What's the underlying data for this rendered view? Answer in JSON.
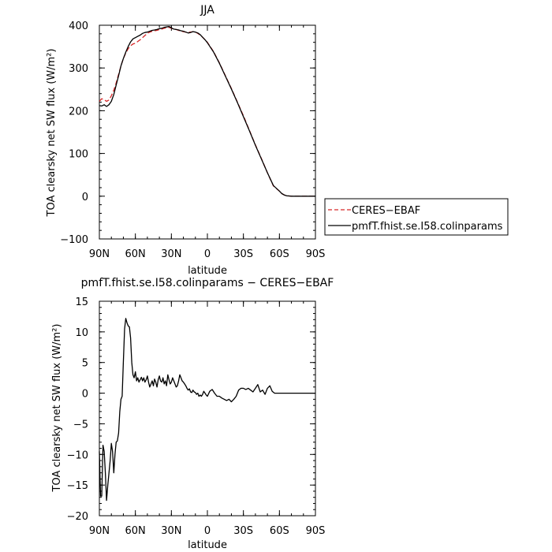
{
  "chart_data": [
    {
      "type": "line",
      "title": "JJA",
      "xlabel": "latitude",
      "ylabel": "TOA clearsky net SW flux (W/m²)",
      "ylim": [
        -100,
        400
      ],
      "xlim": [
        90,
        -90
      ],
      "x_ticks": [
        90,
        60,
        30,
        0,
        -30,
        -60,
        -90
      ],
      "x_tick_labels": [
        "90N",
        "60N",
        "30N",
        "0",
        "30S",
        "60S",
        "90S"
      ],
      "y_ticks": [
        -100,
        0,
        100,
        200,
        300,
        400
      ],
      "y_tick_labels": [
        "−100",
        "0",
        "100",
        "200",
        "300",
        "400"
      ],
      "grid": false,
      "legend_position": "right",
      "series": [
        {
          "name": "CERES−EBAF",
          "color": "#d62728",
          "dash": "dashed",
          "x": [
            90,
            88,
            86,
            84,
            82,
            80,
            78,
            76,
            74,
            72,
            70,
            68,
            66,
            64,
            62,
            60,
            58,
            56,
            54,
            52,
            50,
            48,
            46,
            44,
            42,
            40,
            38,
            36,
            34,
            32,
            30,
            28,
            26,
            24,
            22,
            20,
            18,
            16,
            14,
            12,
            10,
            8,
            6,
            4,
            2,
            0,
            -5,
            -10,
            -15,
            -20,
            -25,
            -30,
            -35,
            -40,
            -45,
            -50,
            -55,
            -60,
            -62,
            -64,
            -66,
            -68,
            -70,
            -75,
            -80,
            -85,
            -90
          ],
          "y": [
            222,
            228,
            226,
            222,
            225,
            235,
            248,
            265,
            285,
            305,
            322,
            335,
            345,
            352,
            356,
            358,
            362,
            366,
            371,
            376,
            381,
            384,
            386,
            387,
            388,
            390,
            391,
            393,
            394,
            395,
            393,
            391,
            390,
            388,
            386,
            385,
            384,
            383,
            384,
            385,
            384,
            381,
            377,
            372,
            366,
            360,
            339,
            312,
            282,
            252,
            220,
            188,
            154,
            120,
            88,
            55,
            24,
            12,
            6,
            3,
            1,
            0.5,
            0,
            0,
            0,
            0,
            0
          ]
        },
        {
          "name": "pmfT.fhist.se.I58.colinparams",
          "color": "#000000",
          "dash": "solid",
          "x": [
            90,
            88,
            86,
            84,
            82,
            80,
            78,
            76,
            74,
            72,
            70,
            68,
            66,
            64,
            62,
            60,
            58,
            56,
            54,
            52,
            50,
            48,
            46,
            44,
            42,
            40,
            38,
            36,
            34,
            32,
            30,
            28,
            26,
            24,
            22,
            20,
            18,
            16,
            14,
            12,
            10,
            8,
            6,
            4,
            2,
            0,
            -5,
            -10,
            -15,
            -20,
            -25,
            -30,
            -35,
            -40,
            -45,
            -50,
            -55,
            -60,
            -62,
            -64,
            -66,
            -68,
            -70,
            -75,
            -80,
            -85,
            -90
          ],
          "y": [
            212,
            211,
            214,
            210,
            214,
            222,
            238,
            260,
            282,
            305,
            322,
            337,
            350,
            361,
            368,
            371,
            374,
            377,
            381,
            383,
            384,
            386,
            388,
            389,
            390,
            392,
            393,
            395,
            396,
            397,
            394,
            391,
            390,
            389,
            387,
            386,
            384,
            382,
            383,
            385,
            384,
            382,
            378,
            372,
            366,
            359,
            338,
            311,
            281,
            251,
            219,
            186,
            153,
            119,
            87,
            55,
            25,
            12,
            6,
            3,
            1,
            0.5,
            0,
            0,
            0,
            0,
            0
          ]
        }
      ]
    },
    {
      "type": "line",
      "title": "pmfT.fhist.se.I58.colinparams − CERES−EBAF",
      "xlabel": "latitude",
      "ylabel": "TOA clearsky net SW flux (W/m²)",
      "ylim": [
        -20,
        15
      ],
      "xlim": [
        90,
        -90
      ],
      "x_ticks": [
        90,
        60,
        30,
        0,
        -30,
        -60,
        -90
      ],
      "x_tick_labels": [
        "90N",
        "60N",
        "30N",
        "0",
        "30S",
        "60S",
        "90S"
      ],
      "y_ticks": [
        -20,
        -15,
        -10,
        -5,
        0,
        5,
        10,
        15
      ],
      "y_tick_labels": [
        "−20",
        "−15",
        "−10",
        "−5",
        "0",
        "5",
        "10",
        "15"
      ],
      "grid": false,
      "series": [
        {
          "color": "#000000",
          "dash": "solid",
          "x": [
            90,
            89,
            88,
            87,
            86,
            85,
            84,
            83,
            82,
            81,
            80,
            79,
            78,
            77,
            76,
            75,
            74,
            73,
            72,
            71,
            70,
            69,
            68,
            67,
            66,
            65,
            64,
            63,
            62,
            61,
            60,
            59,
            58,
            57,
            56,
            55,
            54,
            53,
            52,
            51,
            50,
            49,
            48,
            47,
            46,
            45,
            44,
            43,
            42,
            41,
            40,
            39,
            38,
            37,
            36,
            35,
            34,
            33,
            32,
            31,
            30,
            29,
            28,
            27,
            26,
            25,
            24,
            23,
            22,
            21,
            20,
            19,
            18,
            17,
            16,
            15,
            14,
            13,
            12,
            11,
            10,
            9,
            8,
            7,
            6,
            5,
            4,
            3,
            2,
            1,
            0,
            -2,
            -4,
            -6,
            -8,
            -10,
            -12,
            -14,
            -16,
            -18,
            -20,
            -22,
            -24,
            -26,
            -28,
            -30,
            -32,
            -34,
            -36,
            -38,
            -40,
            -42,
            -44,
            -46,
            -48,
            -50,
            -52,
            -54,
            -56,
            -58,
            -60,
            -62,
            -64,
            -66,
            -68,
            -70,
            -72,
            -74,
            -76,
            -78,
            -80,
            -82,
            -84,
            -86,
            -88,
            -90
          ],
          "y": [
            -9.5,
            -16.8,
            -16.8,
            -8.5,
            -9.5,
            -13.0,
            -17.5,
            -15.0,
            -13.0,
            -11.0,
            -8.2,
            -9.5,
            -13.0,
            -10.0,
            -8.0,
            -7.8,
            -6.5,
            -3.0,
            -1.0,
            -0.5,
            5.0,
            10.5,
            12.2,
            11.5,
            11.0,
            10.8,
            9.0,
            5.0,
            3.0,
            2.5,
            3.5,
            2.0,
            2.5,
            1.8,
            2.2,
            2.6,
            2.0,
            2.5,
            1.8,
            2.2,
            2.8,
            1.8,
            1.0,
            1.5,
            2.0,
            1.2,
            2.3,
            1.8,
            1.0,
            2.2,
            2.8,
            2.0,
            1.8,
            2.5,
            1.5,
            2.0,
            1.2,
            3.0,
            2.2,
            1.5,
            1.8,
            2.5,
            2.0,
            1.5,
            1.0,
            1.2,
            2.0,
            3.0,
            2.5,
            2.0,
            1.8,
            1.5,
            1.2,
            0.8,
            0.5,
            0.7,
            0.2,
            0.1,
            0.5,
            0.2,
            0.1,
            -0.2,
            0.0,
            -0.5,
            -0.3,
            -0.5,
            -0.2,
            0.3,
            0.0,
            -0.3,
            -0.5,
            0.3,
            0.6,
            0.0,
            -0.5,
            -0.5,
            -0.8,
            -1.0,
            -1.2,
            -1.0,
            -1.4,
            -1.0,
            -0.5,
            0.5,
            0.8,
            0.8,
            0.6,
            0.8,
            0.5,
            0.2,
            0.8,
            1.4,
            0.2,
            0.5,
            -0.2,
            0.8,
            1.2,
            0.3,
            0.0,
            0.0,
            0.0,
            0.0,
            0.0,
            0.0,
            0.0,
            0.0,
            0.0,
            0.0,
            0.0,
            0.0,
            0.0,
            0.0,
            0.0,
            0.0,
            0.0,
            0.0
          ]
        }
      ]
    }
  ]
}
